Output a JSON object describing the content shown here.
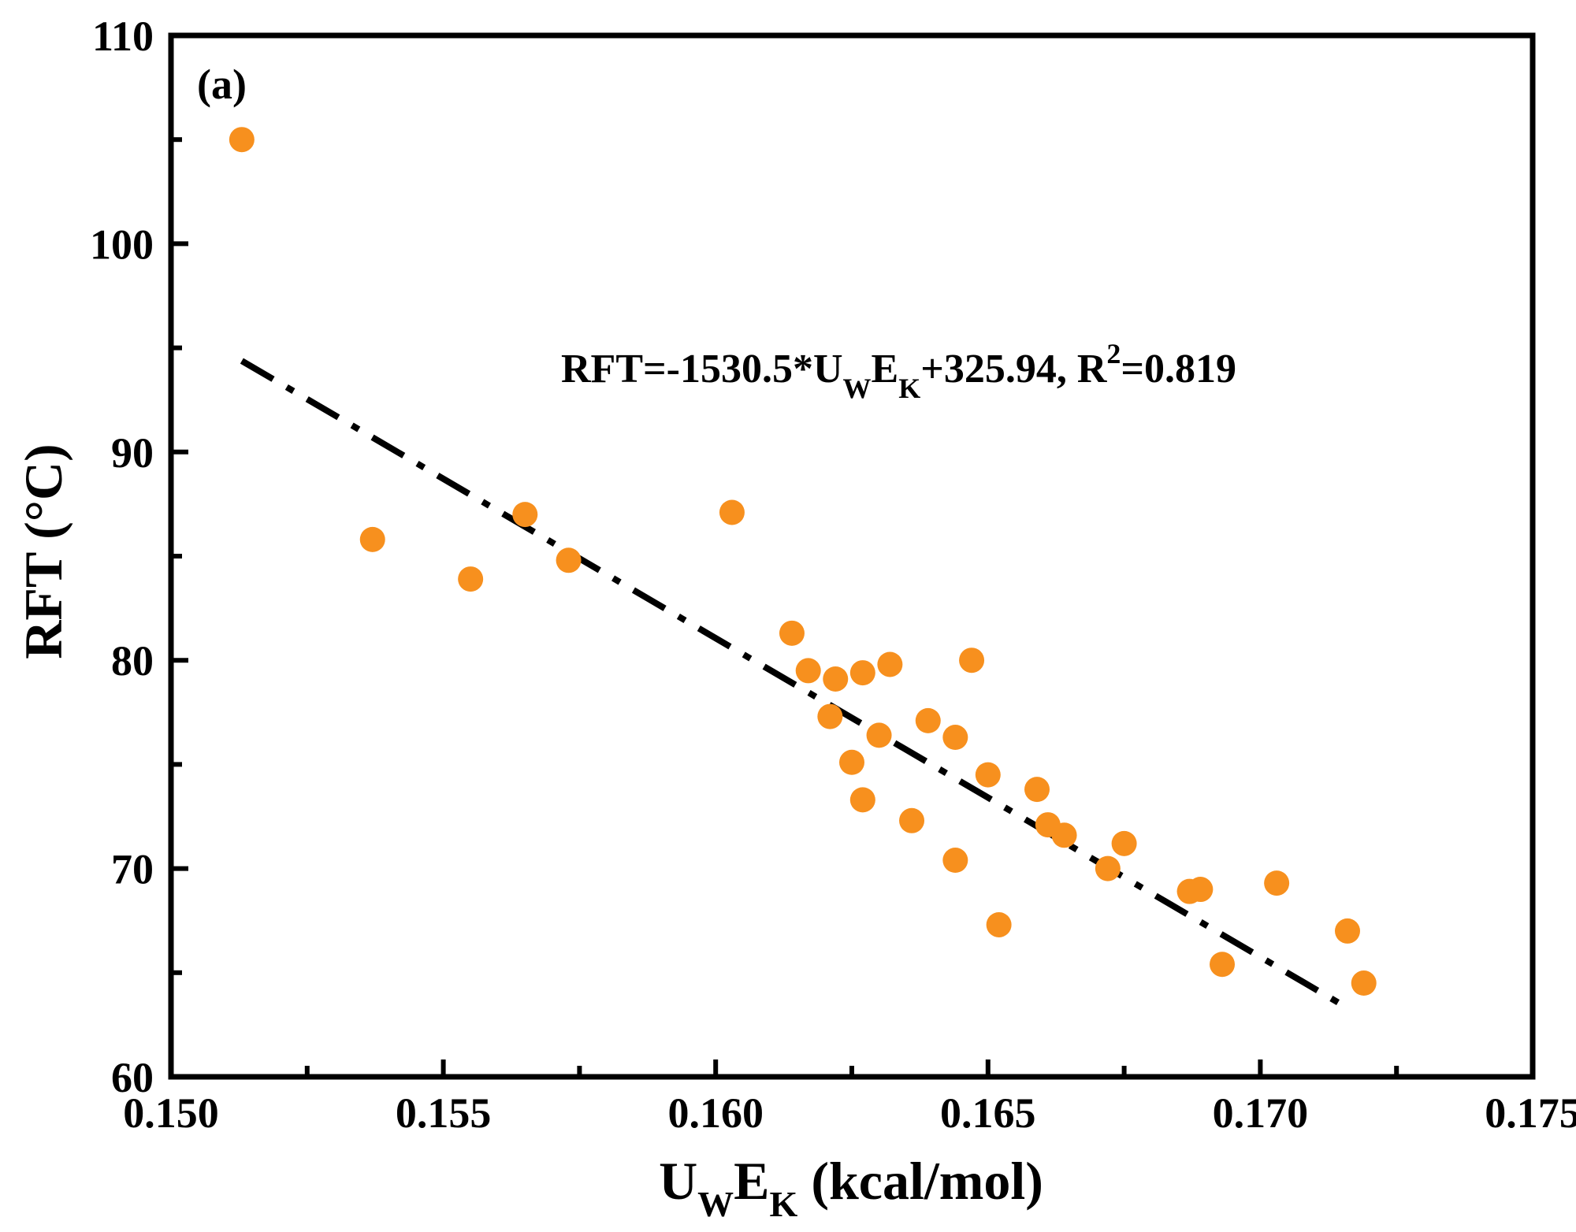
{
  "chart_data": {
    "type": "scatter",
    "panel_label": "(a)",
    "xlabel": {
      "base": "U",
      "sub1": "W",
      "mid": "E",
      "sub2": "K",
      "unit": " (kcal/mol)"
    },
    "ylabel": "RFT (°C)",
    "xlim": [
      0.15,
      0.175
    ],
    "ylim": [
      60,
      110
    ],
    "x_ticks": [
      0.15,
      0.155,
      0.16,
      0.165,
      0.17,
      0.175
    ],
    "x_tick_labels": [
      "0.150",
      "0.155",
      "0.160",
      "0.165",
      "0.170",
      "0.175"
    ],
    "x_minor_ticks": [
      0.1525,
      0.1575,
      0.1625,
      0.1675,
      0.1725
    ],
    "y_ticks": [
      60,
      70,
      80,
      90,
      100,
      110
    ],
    "y_tick_labels": [
      "60",
      "70",
      "80",
      "90",
      "100",
      "110"
    ],
    "y_minor_ticks": [
      65,
      75,
      85,
      95,
      105
    ],
    "grid": false,
    "point_color": "#F7901E",
    "fit_line_color": "#000000",
    "fit": {
      "slope": -1530.5,
      "intercept": 325.94,
      "r2": 0.819,
      "x_range": [
        0.1513,
        0.1715
      ]
    },
    "equation": {
      "lhs": "RFT=-1530.5*U",
      "sub1": "W",
      "mid": "E",
      "sub2": "K",
      "rest": "+325.94, R",
      "sup": "2",
      "tail": "=0.819"
    },
    "points": [
      {
        "x": 0.1513,
        "y": 105.0
      },
      {
        "x": 0.1537,
        "y": 85.8
      },
      {
        "x": 0.1555,
        "y": 83.9
      },
      {
        "x": 0.1565,
        "y": 87.0
      },
      {
        "x": 0.1573,
        "y": 84.8
      },
      {
        "x": 0.1603,
        "y": 87.1
      },
      {
        "x": 0.1614,
        "y": 81.3
      },
      {
        "x": 0.1617,
        "y": 79.5
      },
      {
        "x": 0.1621,
        "y": 77.3
      },
      {
        "x": 0.1622,
        "y": 79.1
      },
      {
        "x": 0.1625,
        "y": 75.1
      },
      {
        "x": 0.1627,
        "y": 79.4
      },
      {
        "x": 0.1627,
        "y": 73.3
      },
      {
        "x": 0.163,
        "y": 76.4
      },
      {
        "x": 0.1632,
        "y": 79.8
      },
      {
        "x": 0.1636,
        "y": 72.3
      },
      {
        "x": 0.1639,
        "y": 77.1
      },
      {
        "x": 0.1644,
        "y": 76.3
      },
      {
        "x": 0.1644,
        "y": 70.4
      },
      {
        "x": 0.1647,
        "y": 80.0
      },
      {
        "x": 0.165,
        "y": 74.5
      },
      {
        "x": 0.1652,
        "y": 67.3
      },
      {
        "x": 0.1659,
        "y": 73.8
      },
      {
        "x": 0.1661,
        "y": 72.1
      },
      {
        "x": 0.1664,
        "y": 71.6
      },
      {
        "x": 0.1672,
        "y": 70.0
      },
      {
        "x": 0.1675,
        "y": 71.2
      },
      {
        "x": 0.1687,
        "y": 68.9
      },
      {
        "x": 0.1689,
        "y": 69.0
      },
      {
        "x": 0.1693,
        "y": 65.4
      },
      {
        "x": 0.1703,
        "y": 69.3
      },
      {
        "x": 0.1716,
        "y": 67.0
      },
      {
        "x": 0.1719,
        "y": 64.5
      }
    ]
  }
}
